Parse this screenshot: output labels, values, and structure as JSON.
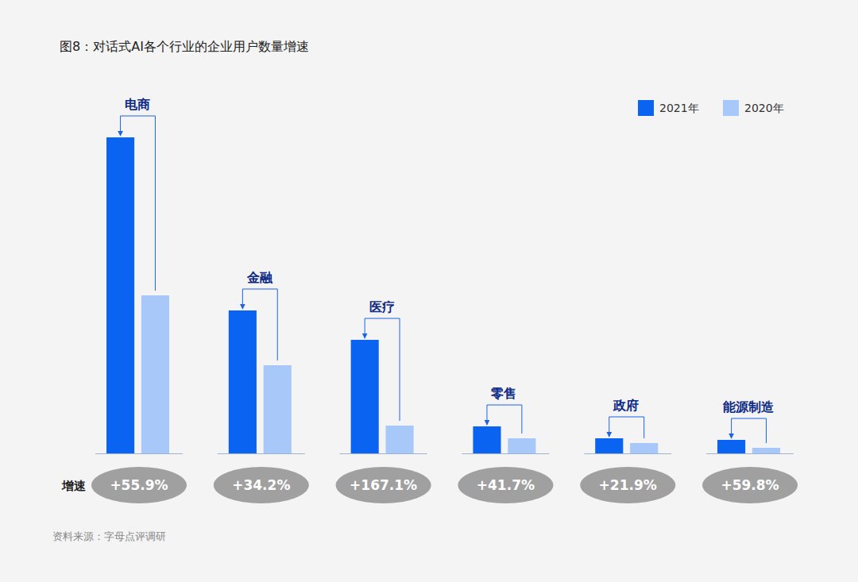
{
  "chart_data": {
    "type": "bar",
    "title": "图8：对话式AI各个行业的企业用户数量增速",
    "categories": [
      "电商",
      "金融",
      "医疗",
      "零售",
      "政府",
      "能源制造"
    ],
    "series": [
      {
        "name": "2021年",
        "color": "#0b63f2",
        "values": [
          398,
          180,
          143,
          34,
          19,
          17
        ]
      },
      {
        "name": "2020年",
        "color": "#a8c8fa",
        "values": [
          199,
          111,
          35,
          19,
          13,
          7
        ]
      }
    ],
    "ylim": [
      0,
      400
    ],
    "tick_labels": false,
    "legend": "top-right",
    "growth": {
      "label": "增速",
      "values": [
        55.9,
        34.2,
        167.1,
        41.7,
        21.9,
        59.8
      ],
      "value_labels": [
        "+55.9%",
        "+34.2%",
        "+167.1%",
        "+41.7%",
        "+21.9%",
        "+59.8%"
      ]
    },
    "source": "资料来源：字母点评调研"
  }
}
